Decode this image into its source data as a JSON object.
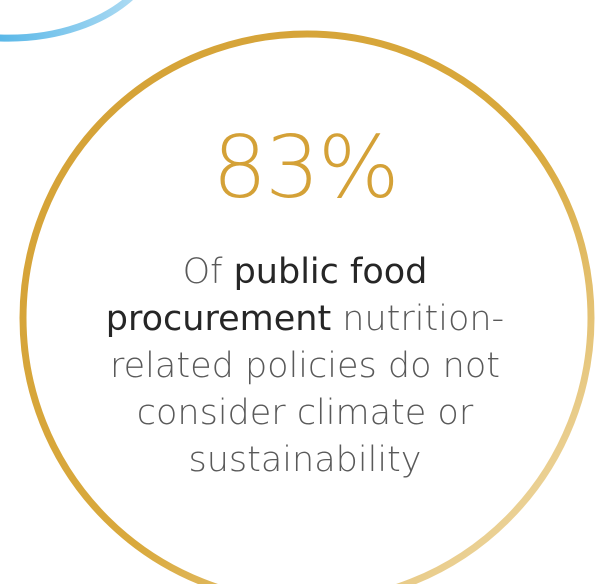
{
  "stat": {
    "value": "83%",
    "caption_lead": "Of ",
    "caption_emphasis": "public food procurement",
    "caption_rest": " nutrition-related policies do not consider climate or sustainability"
  },
  "colors": {
    "gold": "#d4a137",
    "gold_light": "#f2e2bc",
    "blue": "#5bb8e8",
    "blue_light": "#a9d9f2",
    "text_muted": "#595959",
    "text_strong": "#262626"
  }
}
